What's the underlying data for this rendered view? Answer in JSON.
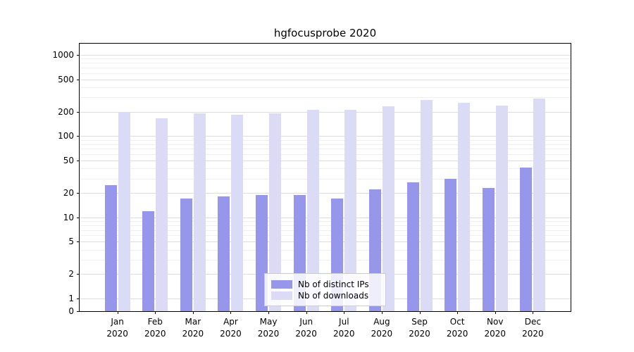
{
  "chart_data": {
    "type": "bar",
    "title": "hgfocusprobe 2020",
    "yscale": "symlog",
    "grid": true,
    "legend_position": "lower center",
    "categories": [
      "Jan",
      "Feb",
      "Mar",
      "Apr",
      "May",
      "Jun",
      "Jul",
      "Aug",
      "Sep",
      "Oct",
      "Nov",
      "Dec"
    ],
    "year": "2020",
    "yticks": [
      0,
      1,
      2,
      5,
      10,
      20,
      50,
      100,
      200,
      500,
      1000
    ],
    "ylim": [
      0,
      1000
    ],
    "series": [
      {
        "name": "Nb of distinct IPs",
        "color": "#9696eb",
        "values": [
          25,
          12,
          17,
          18,
          19,
          19,
          17,
          22,
          27,
          30,
          23,
          41
        ]
      },
      {
        "name": "Nb of downloads",
        "color": "#dbdbf6",
        "values": [
          198,
          165,
          190,
          185,
          190,
          210,
          210,
          235,
          280,
          260,
          240,
          290
        ]
      }
    ]
  }
}
